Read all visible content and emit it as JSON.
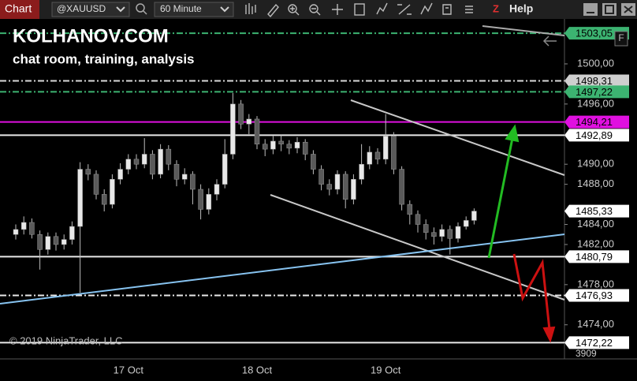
{
  "toolbar": {
    "tab": "Chart",
    "instrument": "@XAUUSD",
    "interval": "60 Minute",
    "help": "Help"
  },
  "watermark": {
    "title": "KOLHANOV.COM",
    "subtitle": "chat room, training, analysis"
  },
  "copyright": "© 2019 NinjaTrader, LLC",
  "panel_button": "F",
  "volume_label": "3909",
  "chart_data": {
    "type": "candlestick",
    "categories": [
      null,
      null,
      null,
      null,
      null,
      null,
      null,
      null,
      null,
      null,
      null,
      null,
      null,
      null,
      "17 Oct",
      null,
      null,
      null,
      null,
      null,
      null,
      null,
      null,
      null,
      null,
      null,
      null,
      null,
      null,
      null,
      "18 Oct",
      null,
      null,
      null,
      null,
      null,
      null,
      null,
      null,
      null,
      null,
      null,
      null,
      null,
      null,
      null,
      "19 Oct",
      null,
      null,
      null,
      null,
      null,
      null,
      null,
      null,
      null,
      null,
      null
    ],
    "open": [
      1483.0,
      1483.5,
      1484.2,
      1483.0,
      1481.5,
      1482.8,
      1482.0,
      1482.5,
      1483.8,
      1489.5,
      1489.0,
      1487.0,
      1486.0,
      1488.5,
      1489.5,
      1490.5,
      1490.0,
      1491.0,
      1489.0,
      1491.5,
      1490.0,
      1488.5,
      1489.0,
      1487.5,
      1485.5,
      1487.0,
      1488.0,
      1491.0,
      1496.0,
      1494.0,
      1494.5,
      1492.0,
      1491.5,
      1492.3,
      1492.0,
      1491.6,
      1492.2,
      1491.0,
      1489.5,
      1488.0,
      1487.5,
      1489.0,
      1486.5,
      1488.5,
      1490.0,
      1491.2,
      1490.5,
      1492.8,
      1489.5,
      1486.0,
      1485.0,
      1484.0,
      1483.2,
      1482.8,
      1483.5,
      1482.6,
      1483.8,
      1484.4
    ],
    "high": [
      1484.0,
      1484.8,
      1484.6,
      1483.4,
      1483.2,
      1483.2,
      1483.0,
      1484.3,
      1490.2,
      1490.0,
      1489.4,
      1487.5,
      1489.0,
      1490.1,
      1491.0,
      1491.0,
      1492.6,
      1491.4,
      1492.0,
      1491.9,
      1490.4,
      1489.6,
      1489.3,
      1488.0,
      1487.6,
      1488.5,
      1492.5,
      1497.1,
      1496.4,
      1495.0,
      1494.8,
      1492.5,
      1492.8,
      1492.9,
      1492.4,
      1492.7,
      1492.5,
      1491.4,
      1489.9,
      1488.5,
      1489.4,
      1489.3,
      1489.0,
      1492.0,
      1491.8,
      1491.6,
      1495.0,
      1493.2,
      1489.8,
      1486.4,
      1485.4,
      1484.5,
      1483.7,
      1484.0,
      1483.9,
      1484.2,
      1484.8,
      1485.6
    ],
    "low": [
      1482.5,
      1483.0,
      1482.6,
      1479.5,
      1481.0,
      1481.4,
      1481.5,
      1482.0,
      1477.2,
      1488.4,
      1486.5,
      1485.3,
      1485.6,
      1488.0,
      1489.0,
      1489.5,
      1489.6,
      1488.5,
      1488.6,
      1489.4,
      1487.8,
      1488.0,
      1486.0,
      1484.5,
      1485.0,
      1486.4,
      1487.6,
      1490.5,
      1493.5,
      1493.0,
      1491.5,
      1490.8,
      1491.0,
      1491.3,
      1491.0,
      1491.1,
      1490.4,
      1489.0,
      1487.4,
      1486.9,
      1487.0,
      1485.6,
      1486.0,
      1488.0,
      1489.5,
      1490.0,
      1490.0,
      1489.0,
      1485.4,
      1484.0,
      1483.2,
      1482.5,
      1482.0,
      1482.3,
      1481.0,
      1482.2,
      1483.5,
      1484.0
    ],
    "close": [
      1483.5,
      1484.2,
      1483.0,
      1481.5,
      1482.8,
      1482.0,
      1482.5,
      1483.8,
      1489.5,
      1489.0,
      1487.0,
      1486.0,
      1488.5,
      1489.5,
      1490.5,
      1490.0,
      1491.0,
      1489.0,
      1491.5,
      1490.0,
      1488.5,
      1489.0,
      1487.5,
      1485.5,
      1487.0,
      1488.0,
      1491.0,
      1496.0,
      1494.0,
      1494.5,
      1492.0,
      1491.5,
      1492.3,
      1492.0,
      1491.6,
      1492.2,
      1491.0,
      1489.5,
      1488.0,
      1487.5,
      1489.0,
      1486.5,
      1488.5,
      1490.0,
      1491.2,
      1490.5,
      1492.8,
      1489.5,
      1486.0,
      1485.0,
      1484.0,
      1483.2,
      1482.8,
      1483.5,
      1482.6,
      1483.8,
      1484.4,
      1485.33
    ],
    "up_color": "#e8e8e8",
    "down_color": "#5a5a5a",
    "wick_color": "#bdbdbd",
    "ylim": [
      1470.6,
      1504.4
    ],
    "yticks": [
      {
        "value": 1474,
        "label": "1474,00"
      },
      {
        "value": 1478,
        "label": "1478,00"
      },
      {
        "value": 1482,
        "label": "1482,00"
      },
      {
        "value": 1484,
        "label": "1484,00"
      },
      {
        "value": 1488,
        "label": "1488,00"
      },
      {
        "value": 1490,
        "label": "1490,00"
      },
      {
        "value": 1496,
        "label": "1496,00"
      },
      {
        "value": 1500,
        "label": "1500,00"
      }
    ],
    "levels": [
      {
        "value": 1503.05,
        "label": "1503,05",
        "color": "#3cb371",
        "style": "dashdot",
        "box": "#3cb371"
      },
      {
        "value": 1498.31,
        "label": "1498,31",
        "color": "#d8d8d8",
        "style": "dashdot",
        "box": "#cfcfcf"
      },
      {
        "value": 1497.22,
        "label": "1497,22",
        "color": "#3cb371",
        "style": "dashdot",
        "box": "#3cb371"
      },
      {
        "value": 1494.21,
        "label": "1494,21",
        "color": "#e010e0",
        "style": "solid",
        "box": "#e010e0"
      },
      {
        "value": 1492.89,
        "label": "1492,89",
        "color": "#e8e8e8",
        "style": "solid",
        "box": "#ffffff"
      },
      {
        "value": 1485.33,
        "label": "1485,33",
        "color": "#ffffff",
        "style": "none",
        "box": "#ffffff"
      },
      {
        "value": 1480.79,
        "label": "1480,79",
        "color": "#e8e8e8",
        "style": "solid",
        "box": "#ffffff"
      },
      {
        "value": 1476.93,
        "label": "1476,93",
        "color": "#e8e8e8",
        "style": "dashdot",
        "box": "#ffffff"
      },
      {
        "value": 1472.22,
        "label": "1472,22",
        "color": "#e8e8e8",
        "style": "solid",
        "box": "#ffffff"
      }
    ]
  }
}
